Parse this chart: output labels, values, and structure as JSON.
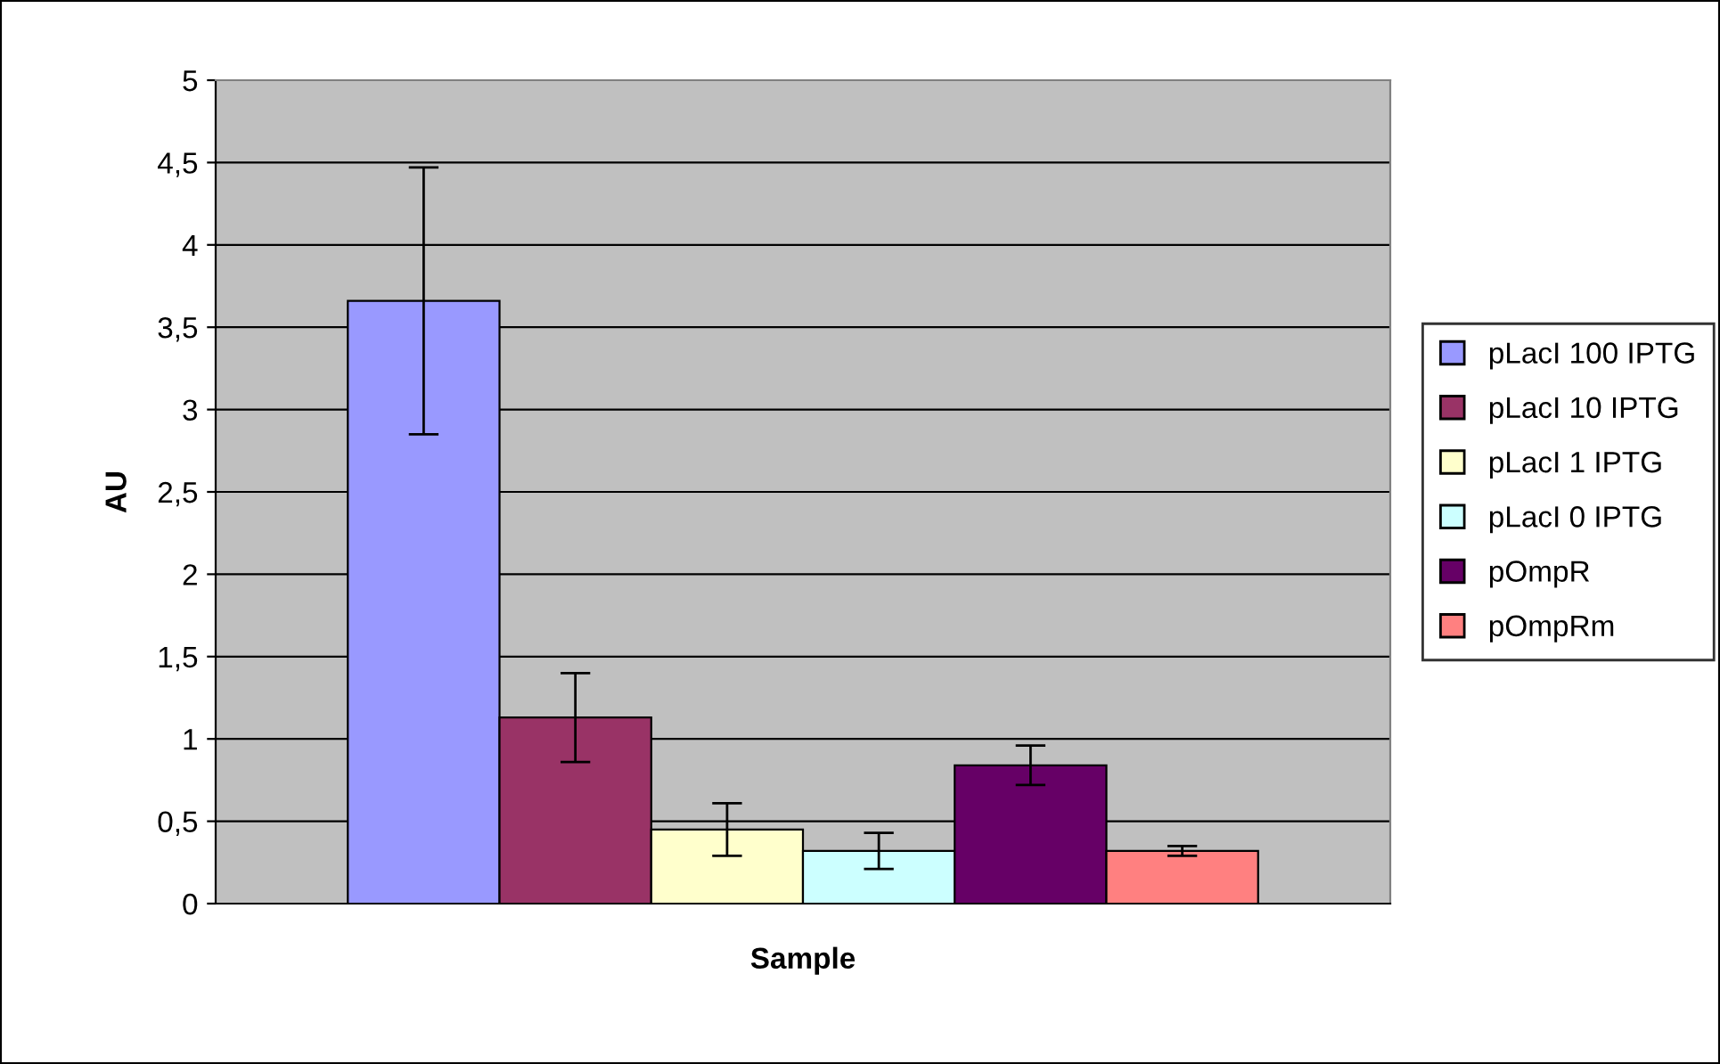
{
  "chart_data": {
    "type": "bar",
    "categories": [
      null
    ],
    "xlabel": "Sample",
    "ylabel": "AU",
    "ylim": [
      0,
      5
    ],
    "yticks": [
      0,
      {
        "value": 0.5,
        "label": "0,5"
      },
      1,
      {
        "value": 1.5,
        "label": "1,5"
      },
      2,
      {
        "value": 2.5,
        "label": "2,5"
      },
      3,
      {
        "value": 3.5,
        "label": "3,5"
      },
      4,
      {
        "value": 4.5,
        "label": "4,5"
      },
      5
    ],
    "grid": "y",
    "legend": "right",
    "series": [
      {
        "name": "pLacI 100 IPTG",
        "color": "#9999ff",
        "values": [
          3.66
        ],
        "errors": [
          0.81
        ]
      },
      {
        "name": "pLacI 10 IPTG",
        "color": "#993366",
        "values": [
          1.13
        ],
        "errors": [
          0.27
        ]
      },
      {
        "name": "pLacI 1 IPTG",
        "color": "#ffffcc",
        "values": [
          0.45
        ],
        "errors": [
          0.16
        ]
      },
      {
        "name": "pLacI 0 IPTG",
        "color": "#ccffff",
        "values": [
          0.32
        ],
        "errors": [
          0.11
        ]
      },
      {
        "name": "pOmpR",
        "color": "#660066",
        "values": [
          0.84
        ],
        "errors": [
          0.12
        ]
      },
      {
        "name": "pOmpRm",
        "color": "#ff8080",
        "values": [
          0.32
        ],
        "errors": [
          0.03
        ]
      }
    ]
  }
}
